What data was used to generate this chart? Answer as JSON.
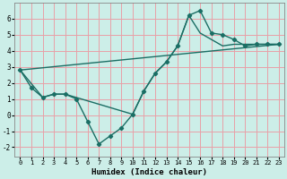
{
  "xlabel": "Humidex (Indice chaleur)",
  "bg_color": "#cceee8",
  "grid_color": "#e8a0a8",
  "line_color": "#1a6e64",
  "xlim": [
    -0.5,
    23.5
  ],
  "ylim": [
    -2.6,
    7.0
  ],
  "yticks": [
    -2,
    -1,
    0,
    1,
    2,
    3,
    4,
    5,
    6
  ],
  "xticks": [
    0,
    1,
    2,
    3,
    4,
    5,
    6,
    7,
    8,
    9,
    10,
    11,
    12,
    13,
    14,
    15,
    16,
    17,
    18,
    19,
    20,
    21,
    22,
    23
  ],
  "line1_x": [
    0,
    1,
    2,
    3,
    4,
    5,
    6,
    7,
    8,
    9,
    10,
    11,
    12,
    13,
    14,
    15,
    16,
    17,
    18,
    19,
    20,
    21,
    22,
    23
  ],
  "line1_y": [
    2.8,
    1.7,
    1.1,
    1.3,
    1.3,
    1.0,
    -0.4,
    -1.8,
    -1.3,
    -0.8,
    0.05,
    1.5,
    2.6,
    3.3,
    4.3,
    6.2,
    6.5,
    5.1,
    5.0,
    4.7,
    4.3,
    4.4,
    4.4,
    4.4
  ],
  "line2_x": [
    0,
    2,
    3,
    4,
    10,
    11,
    12,
    13,
    14,
    15,
    16,
    17,
    18,
    19,
    20,
    21,
    22,
    23
  ],
  "line2_y": [
    2.8,
    1.1,
    1.3,
    1.3,
    0.05,
    1.5,
    2.6,
    3.3,
    4.3,
    6.2,
    5.1,
    4.7,
    4.3,
    4.4,
    4.4,
    4.4,
    4.4,
    4.4
  ],
  "line3_x": [
    0,
    23
  ],
  "line3_y": [
    2.8,
    4.4
  ]
}
